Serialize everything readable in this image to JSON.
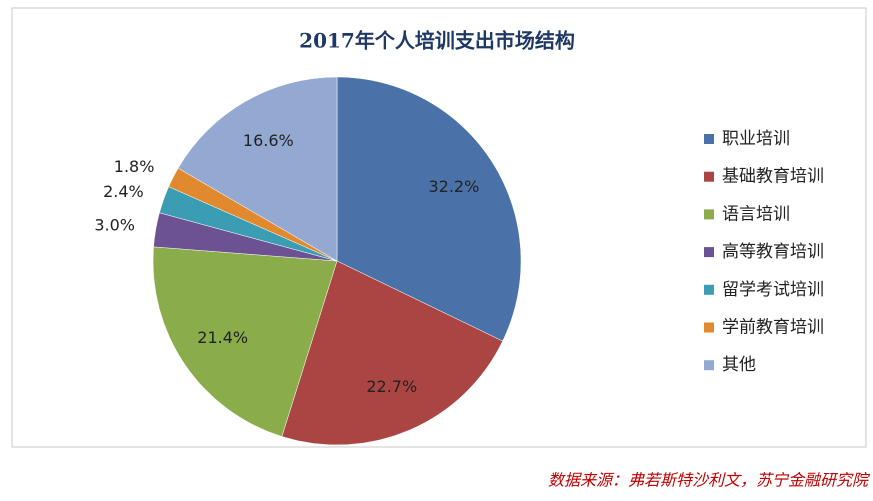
{
  "chart_data": {
    "type": "pie",
    "title": "2017年个人培训支出市场结构",
    "categories": [
      "职业培训",
      "基础教育培训",
      "语言培训",
      "高等教育培训",
      "留学考试培训",
      "学前教育培训",
      "其他"
    ],
    "values": [
      32.2,
      22.7,
      21.4,
      3.0,
      2.4,
      1.8,
      16.6
    ],
    "value_labels": [
      "32.2%",
      "22.7%",
      "21.4%",
      "3.0%",
      "2.4%",
      "1.8%",
      "16.6%"
    ],
    "colors": [
      "#4a72a8",
      "#ab4543",
      "#8aac4a",
      "#6c5193",
      "#3a9db3",
      "#e0892e",
      "#93a9d2"
    ],
    "legend": "right"
  },
  "source": "数据来源：弗若斯特沙利文，苏宁金融研究院"
}
